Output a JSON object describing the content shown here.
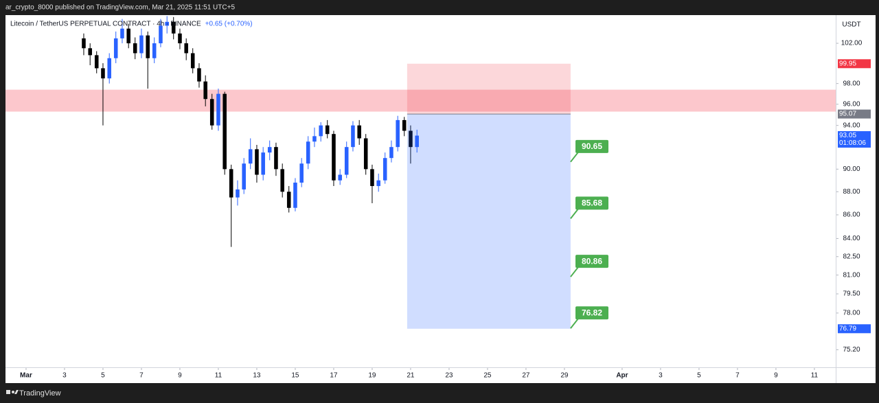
{
  "publisher_line": "ar_crypto_8000 published on TradingView.com, Mar 21, 2025 11:51 UTC+5",
  "footer_brand": "TradingView",
  "chart_data": {
    "type": "candlestick",
    "title": "Litecoin / TetherUS PERPETUAL CONTRACT · 4h · BINANCE",
    "change": "+0.65 (+0.70%)",
    "currency": "USDT",
    "log_scale": true,
    "up_color": "#2962ff",
    "down_color": "#000000",
    "x": [
      4.0,
      4.33,
      4.67,
      5.0,
      5.33,
      5.67,
      6.0,
      6.33,
      6.67,
      7.0,
      7.33,
      7.67,
      8.0,
      8.33,
      8.67,
      9.0,
      9.33,
      9.67,
      10.0,
      10.33,
      10.67,
      11.0,
      11.33,
      11.67,
      12.0,
      12.33,
      12.67,
      13.0,
      13.33,
      13.67,
      14.0,
      14.33,
      14.67,
      15.0,
      15.33,
      15.67,
      16.0,
      16.33,
      16.67,
      17.0,
      17.33,
      17.67,
      18.0,
      18.33,
      18.67,
      19.0,
      19.33,
      19.67,
      20.0,
      20.33,
      20.67,
      21.0,
      21.33
    ],
    "open": [
      102.5,
      101.5,
      100.8,
      99.5,
      98.5,
      100.5,
      102.5,
      103.5,
      102.0,
      101.0,
      102.8,
      100.5,
      102.0,
      103.8,
      104.2,
      103.0,
      102.0,
      101.0,
      99.5,
      98.2,
      96.5,
      94.0,
      97.0,
      90.0,
      87.5,
      88.2,
      90.5,
      91.8,
      89.5,
      91.5,
      92.0,
      90.0,
      88.0,
      86.6,
      88.8,
      90.5,
      92.5,
      93.0,
      94.0,
      93.2,
      89.0,
      89.5,
      92.0,
      94.0,
      92.8,
      90.0,
      88.5,
      89.0,
      91.0,
      92.0,
      94.5,
      93.5,
      92.0
    ],
    "high": [
      103.0,
      102.0,
      101.2,
      100.0,
      101.0,
      103.2,
      104.5,
      104.0,
      102.6,
      103.5,
      103.2,
      102.6,
      104.5,
      104.8,
      104.7,
      103.5,
      102.5,
      101.5,
      100.0,
      98.8,
      97.0,
      97.5,
      97.2,
      90.4,
      89.0,
      91.0,
      92.8,
      92.2,
      92.0,
      92.6,
      92.4,
      90.5,
      88.5,
      89.2,
      91.0,
      93.0,
      93.8,
      94.3,
      94.5,
      93.5,
      90.0,
      92.5,
      94.4,
      94.5,
      93.2,
      90.4,
      89.6,
      91.5,
      92.6,
      94.9,
      94.8,
      94.0,
      93.6
    ],
    "low": [
      100.8,
      99.8,
      99.0,
      94.0,
      98.0,
      100.0,
      102.0,
      101.5,
      100.4,
      100.5,
      97.5,
      100.0,
      101.6,
      103.0,
      102.4,
      101.4,
      100.3,
      99.0,
      97.6,
      95.8,
      93.6,
      93.5,
      89.5,
      83.3,
      86.8,
      87.8,
      90.0,
      88.8,
      89.0,
      90.8,
      89.4,
      87.5,
      86.2,
      86.3,
      88.4,
      90.0,
      92.0,
      92.5,
      92.8,
      88.5,
      88.6,
      89.2,
      91.6,
      92.2,
      89.5,
      87.0,
      88.0,
      88.7,
      90.6,
      91.6,
      93.0,
      90.5,
      91.5
    ],
    "close": [
      101.5,
      100.8,
      99.5,
      98.5,
      100.5,
      102.5,
      103.5,
      102.0,
      101.0,
      102.8,
      100.5,
      102.0,
      103.8,
      104.2,
      103.0,
      102.0,
      101.0,
      99.5,
      98.2,
      96.5,
      94.0,
      97.0,
      90.0,
      87.5,
      88.2,
      90.5,
      91.8,
      89.5,
      91.5,
      92.0,
      90.0,
      88.0,
      86.6,
      88.8,
      90.5,
      92.5,
      93.0,
      94.0,
      93.2,
      89.0,
      89.5,
      92.0,
      94.0,
      92.8,
      90.0,
      88.5,
      89.0,
      91.0,
      92.0,
      94.5,
      93.5,
      92.0,
      93.05
    ],
    "xlim": [
      -0.07,
      43.11
    ],
    "xticks": [
      {
        "value": 1,
        "label": "Mar"
      },
      3,
      5,
      7,
      9,
      11,
      13,
      15,
      17,
      19,
      21,
      23,
      25,
      27,
      29,
      {
        "value": 32,
        "label": "Apr"
      },
      {
        "value": 34,
        "label": "3"
      },
      {
        "value": 36,
        "label": "5"
      },
      {
        "value": 38,
        "label": "7"
      },
      {
        "value": 40,
        "label": "9"
      },
      {
        "value": 42,
        "label": "11"
      }
    ],
    "ylim": [
      73.9,
      104.9
    ],
    "yticks": [
      {
        "value": 102,
        "label": "102.00"
      },
      {
        "value": 98,
        "label": "98.00"
      },
      {
        "value": 96,
        "label": "96.00"
      },
      {
        "value": 94,
        "label": "94.00"
      },
      {
        "value": 90,
        "label": "90.00"
      },
      {
        "value": 88,
        "label": "88.00"
      },
      {
        "value": 86,
        "label": "86.00"
      },
      {
        "value": 84,
        "label": "84.00"
      },
      {
        "value": 82.5,
        "label": "82.50"
      },
      {
        "value": 81,
        "label": "81.00"
      },
      {
        "value": 79.5,
        "label": "79.50"
      },
      {
        "value": 78,
        "label": "78.00"
      },
      {
        "value": 75.2,
        "label": "75.20"
      }
    ],
    "zone": {
      "range": [
        95.3,
        97.4
      ],
      "color": "rgba(247,82,95,0.32)"
    },
    "position": {
      "x": [
        20.82,
        29.32
      ],
      "entry": 95.07,
      "stop": 99.95,
      "target": 76.79,
      "stop_color": "rgba(242,54,69,0.2)",
      "target_color": "rgba(41,98,255,0.22)"
    },
    "targets": {
      "values": [
        90.65,
        85.68,
        80.86,
        76.82
      ],
      "color": "#4caf50"
    },
    "price_labels": [
      {
        "value": 99.95,
        "color": "#f23645"
      },
      {
        "value": 95.07,
        "color": "#787b86"
      },
      {
        "value": 93.05,
        "color": "#2962ff",
        "countdown": "01:08:06"
      },
      {
        "value": 76.79,
        "color": "#2962ff"
      }
    ]
  }
}
